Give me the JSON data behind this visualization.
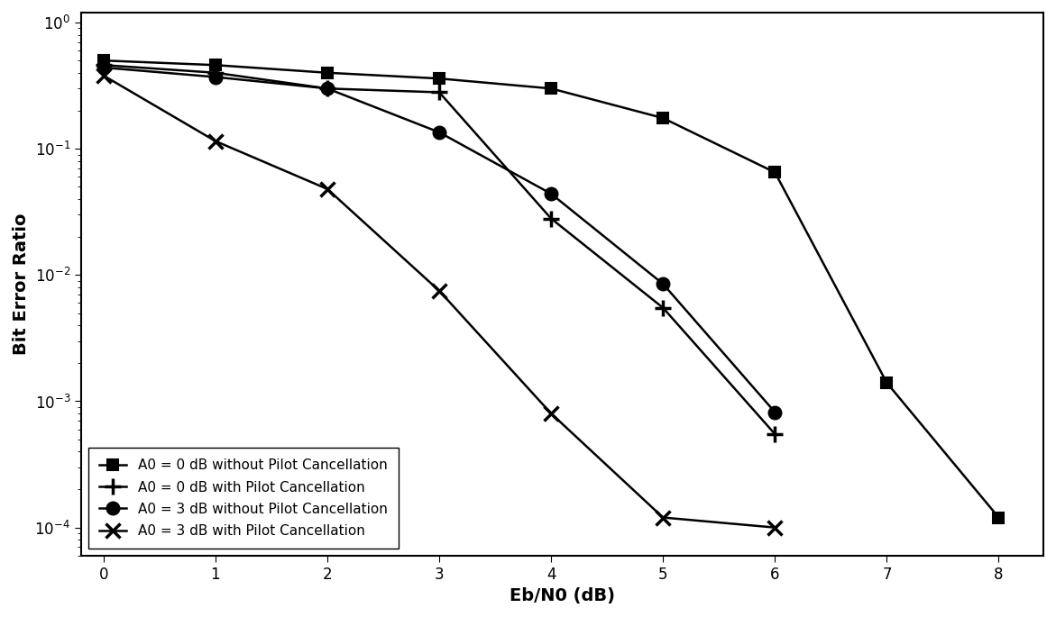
{
  "xlabel": "Eb/N0 (dB)",
  "ylabel": "Bit Error Ratio",
  "xlim": [
    -0.2,
    8.4
  ],
  "background_color": "#ffffff",
  "series": [
    {
      "label": "A0 = 0 dB without Pilot Cancellation",
      "x": [
        0,
        1,
        2,
        3,
        4,
        5,
        6,
        7,
        8
      ],
      "y": [
        0.5,
        0.46,
        0.4,
        0.36,
        0.3,
        0.175,
        0.065,
        0.0014,
        0.00012
      ],
      "color": "#000000",
      "marker": "s",
      "markersize": 8,
      "linewidth": 1.8,
      "linestyle": "-",
      "markerfacecolor": "black"
    },
    {
      "label": "A0 = 0 dB with Pilot Cancellation",
      "x": [
        0,
        1,
        2,
        3,
        4,
        5,
        6
      ],
      "y": [
        0.46,
        0.4,
        0.3,
        0.28,
        0.028,
        0.0055,
        0.00055
      ],
      "color": "#000000",
      "marker": "+",
      "markersize": 13,
      "linewidth": 1.8,
      "linestyle": "-",
      "markerfacecolor": "none"
    },
    {
      "label": "A0 = 3 dB without Pilot Cancellation",
      "x": [
        0,
        1,
        2,
        3,
        4,
        5,
        6
      ],
      "y": [
        0.44,
        0.37,
        0.3,
        0.135,
        0.044,
        0.0085,
        0.00082
      ],
      "color": "#000000",
      "marker": "o",
      "markersize": 10,
      "linewidth": 1.8,
      "linestyle": "-",
      "markerfacecolor": "black"
    },
    {
      "label": "A0 = 3 dB with Pilot Cancellation",
      "x": [
        0,
        1,
        2,
        3,
        4,
        5,
        6
      ],
      "y": [
        0.38,
        0.115,
        0.048,
        0.0075,
        0.0008,
        0.00012,
        0.0001
      ],
      "color": "#000000",
      "marker": "x",
      "markersize": 11,
      "linewidth": 1.8,
      "linestyle": "-",
      "markerfacecolor": "none"
    }
  ],
  "legend_loc": "lower left",
  "legend_fontsize": 11,
  "axis_fontsize": 14,
  "tick_fontsize": 12
}
